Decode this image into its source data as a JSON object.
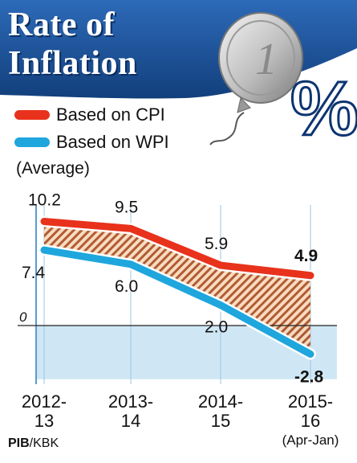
{
  "title_lines": [
    "Rate of",
    "Inflation"
  ],
  "note": "(Average)",
  "source_bold": "PIB",
  "source_rest": "/KBK",
  "colors": {
    "cpi": "#e8321c",
    "wpi": "#1fa6dd",
    "header": "#1a4e93",
    "hatch": "#a9491f"
  },
  "chart_data": {
    "type": "line",
    "categories": [
      [
        "2012-",
        "13"
      ],
      [
        "2013-",
        "14"
      ],
      [
        "2014-",
        "15"
      ],
      [
        "2015-",
        "16",
        "(Apr-Jan)"
      ]
    ],
    "series": [
      {
        "name": "Based on CPI",
        "values": [
          10.2,
          9.5,
          5.9,
          4.9
        ],
        "labels": [
          "10.2",
          "9.5",
          "5.9",
          "4.9"
        ]
      },
      {
        "name": "Based on WPI",
        "values": [
          7.4,
          6.0,
          2.0,
          -2.8
        ],
        "labels": [
          "7.4",
          "6.0",
          "2.0",
          "-2.8"
        ]
      }
    ],
    "zero_label": "0",
    "ylim": [
      -4,
      12
    ]
  }
}
